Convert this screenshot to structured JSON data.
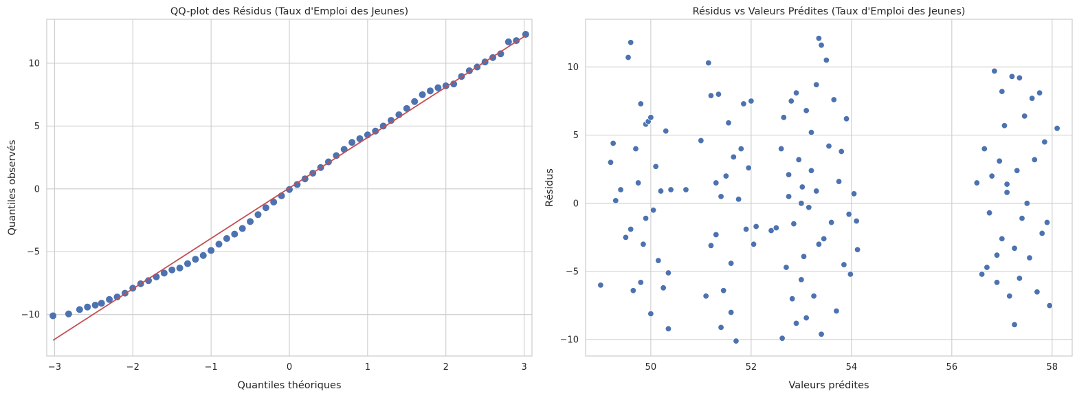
{
  "chart_data": [
    {
      "type": "scatter",
      "title": "QQ-plot des Résidus (Taux d'Emploi des Jeunes)",
      "xlabel": "Quantiles théoriques",
      "ylabel": "Quantiles observés",
      "xlim": [
        -3.1,
        3.1
      ],
      "ylim": [
        -13.3,
        13.5
      ],
      "xticks": [
        -3,
        -2,
        -1,
        0,
        1,
        2,
        3
      ],
      "yticks": [
        -10,
        -5,
        0,
        5,
        10
      ],
      "grid": true,
      "point_color": "#4c72b0",
      "line_color": "#c44e52",
      "reference_line": {
        "x": [
          -3.02,
          3.02
        ],
        "y": [
          -12.05,
          12.2
        ]
      },
      "series": [
        {
          "values": [
            [
              -3.02,
              -10.1
            ],
            [
              -2.82,
              -9.95
            ],
            [
              -2.68,
              -9.6
            ],
            [
              -2.58,
              -9.4
            ],
            [
              -2.48,
              -9.25
            ],
            [
              -2.4,
              -9.1
            ],
            [
              -2.3,
              -8.8
            ],
            [
              -2.2,
              -8.6
            ],
            [
              -2.1,
              -8.3
            ],
            [
              -2.0,
              -7.9
            ],
            [
              -1.9,
              -7.55
            ],
            [
              -1.8,
              -7.3
            ],
            [
              -1.7,
              -7.0
            ],
            [
              -1.6,
              -6.7
            ],
            [
              -1.5,
              -6.45
            ],
            [
              -1.4,
              -6.3
            ],
            [
              -1.3,
              -5.95
            ],
            [
              -1.2,
              -5.6
            ],
            [
              -1.1,
              -5.3
            ],
            [
              -1.0,
              -4.9
            ],
            [
              -0.9,
              -4.4
            ],
            [
              -0.8,
              -3.95
            ],
            [
              -0.7,
              -3.6
            ],
            [
              -0.6,
              -3.15
            ],
            [
              -0.5,
              -2.6
            ],
            [
              -0.4,
              -2.05
            ],
            [
              -0.3,
              -1.5
            ],
            [
              -0.2,
              -1.05
            ],
            [
              -0.1,
              -0.55
            ],
            [
              0.0,
              -0.05
            ],
            [
              0.1,
              0.35
            ],
            [
              0.2,
              0.8
            ],
            [
              0.3,
              1.25
            ],
            [
              0.4,
              1.7
            ],
            [
              0.5,
              2.15
            ],
            [
              0.6,
              2.65
            ],
            [
              0.7,
              3.15
            ],
            [
              0.8,
              3.7
            ],
            [
              0.9,
              4.0
            ],
            [
              1.0,
              4.3
            ],
            [
              1.1,
              4.6
            ],
            [
              1.2,
              5.0
            ],
            [
              1.3,
              5.45
            ],
            [
              1.4,
              5.9
            ],
            [
              1.5,
              6.4
            ],
            [
              1.6,
              6.95
            ],
            [
              1.7,
              7.5
            ],
            [
              1.8,
              7.8
            ],
            [
              1.9,
              8.05
            ],
            [
              2.0,
              8.2
            ],
            [
              2.1,
              8.35
            ],
            [
              2.2,
              8.95
            ],
            [
              2.3,
              9.4
            ],
            [
              2.4,
              9.7
            ],
            [
              2.5,
              10.1
            ],
            [
              2.6,
              10.45
            ],
            [
              2.7,
              10.75
            ],
            [
              2.8,
              11.7
            ],
            [
              2.9,
              11.8
            ],
            [
              3.02,
              12.3
            ]
          ]
        }
      ]
    },
    {
      "type": "scatter",
      "title": "Résidus vs Valeurs Prédites (Taux d'Emploi des Jeunes)",
      "xlabel": "Valeurs prédites",
      "ylabel": "Résidus",
      "xlim": [
        48.7,
        58.4
      ],
      "ylim": [
        -11.2,
        13.5
      ],
      "xticks": [
        50,
        52,
        54,
        56,
        58
      ],
      "yticks": [
        -10,
        -5,
        0,
        5,
        10
      ],
      "grid": true,
      "point_color": "#4c72b0",
      "series": [
        {
          "values": [
            [
              49.0,
              -6.0
            ],
            [
              49.2,
              3.0
            ],
            [
              49.25,
              4.4
            ],
            [
              49.3,
              0.2
            ],
            [
              49.4,
              1.0
            ],
            [
              49.5,
              -2.5
            ],
            [
              49.55,
              10.7
            ],
            [
              49.6,
              11.8
            ],
            [
              49.6,
              -1.9
            ],
            [
              49.7,
              4.0
            ],
            [
              49.75,
              1.5
            ],
            [
              49.8,
              7.3
            ],
            [
              49.8,
              -5.8
            ],
            [
              49.85,
              -3.0
            ],
            [
              49.9,
              5.8
            ],
            [
              49.95,
              6.0
            ],
            [
              50.0,
              6.3
            ],
            [
              50.0,
              -8.1
            ],
            [
              50.05,
              -0.5
            ],
            [
              50.1,
              2.7
            ],
            [
              50.15,
              -4.2
            ],
            [
              50.2,
              0.9
            ],
            [
              50.25,
              -6.2
            ],
            [
              50.3,
              5.3
            ],
            [
              50.35,
              -5.1
            ],
            [
              50.4,
              1.0
            ],
            [
              49.65,
              -6.4
            ],
            [
              49.9,
              -1.1
            ],
            [
              50.35,
              -9.2
            ],
            [
              50.7,
              1.0
            ],
            [
              51.0,
              4.6
            ],
            [
              51.1,
              -6.8
            ],
            [
              51.15,
              10.3
            ],
            [
              51.2,
              7.9
            ],
            [
              51.2,
              -3.1
            ],
            [
              51.3,
              1.5
            ],
            [
              51.35,
              8.0
            ],
            [
              51.4,
              -9.1
            ],
            [
              51.4,
              0.5
            ],
            [
              51.5,
              2.0
            ],
            [
              51.55,
              5.9
            ],
            [
              51.6,
              -4.4
            ],
            [
              51.65,
              3.4
            ],
            [
              51.7,
              -10.1
            ],
            [
              51.75,
              0.3
            ],
            [
              51.8,
              4.0
            ],
            [
              51.85,
              7.3
            ],
            [
              51.9,
              -1.9
            ],
            [
              51.95,
              2.6
            ],
            [
              52.0,
              7.5
            ],
            [
              52.05,
              -3.0
            ],
            [
              52.1,
              -1.7
            ],
            [
              51.3,
              -2.3
            ],
            [
              51.45,
              -6.4
            ],
            [
              51.6,
              -8.0
            ],
            [
              52.4,
              -2.0
            ],
            [
              52.5,
              -1.8
            ],
            [
              52.6,
              4.0
            ],
            [
              52.62,
              -9.9
            ],
            [
              52.65,
              6.3
            ],
            [
              52.7,
              -4.7
            ],
            [
              52.75,
              0.5
            ],
            [
              52.8,
              7.5
            ],
            [
              52.82,
              -7.0
            ],
            [
              52.85,
              -1.5
            ],
            [
              52.9,
              8.1
            ],
            [
              52.95,
              3.2
            ],
            [
              53.0,
              -5.6
            ],
            [
              53.02,
              1.2
            ],
            [
              53.05,
              -3.9
            ],
            [
              53.1,
              6.8
            ],
            [
              53.15,
              -0.3
            ],
            [
              53.2,
              2.4
            ],
            [
              53.25,
              -6.8
            ],
            [
              53.3,
              8.7
            ],
            [
              53.3,
              0.9
            ],
            [
              53.35,
              12.1
            ],
            [
              53.4,
              11.6
            ],
            [
              53.4,
              -9.6
            ],
            [
              53.45,
              -2.6
            ],
            [
              53.5,
              10.5
            ],
            [
              53.55,
              4.2
            ],
            [
              53.6,
              -1.4
            ],
            [
              53.65,
              7.6
            ],
            [
              53.7,
              -7.9
            ],
            [
              53.75,
              1.6
            ],
            [
              53.8,
              3.8
            ],
            [
              53.85,
              -4.5
            ],
            [
              53.9,
              6.2
            ],
            [
              53.95,
              -0.8
            ],
            [
              53.98,
              -5.2
            ],
            [
              54.05,
              0.7
            ],
            [
              54.1,
              -1.3
            ],
            [
              54.12,
              -3.4
            ],
            [
              52.9,
              -8.8
            ],
            [
              53.1,
              -8.4
            ],
            [
              53.2,
              5.2
            ],
            [
              53.35,
              -3.0
            ],
            [
              52.75,
              2.1
            ],
            [
              53.0,
              0.0
            ],
            [
              56.5,
              1.5
            ],
            [
              56.6,
              -5.2
            ],
            [
              56.65,
              4.0
            ],
            [
              56.7,
              -4.7
            ],
            [
              56.75,
              -0.7
            ],
            [
              56.8,
              2.0
            ],
            [
              56.85,
              9.7
            ],
            [
              56.9,
              -5.8
            ],
            [
              56.95,
              3.1
            ],
            [
              57.0,
              8.2
            ],
            [
              57.0,
              -2.6
            ],
            [
              57.05,
              5.7
            ],
            [
              57.1,
              0.8
            ],
            [
              57.15,
              -6.8
            ],
            [
              57.2,
              9.3
            ],
            [
              57.25,
              -8.9
            ],
            [
              57.3,
              2.4
            ],
            [
              57.35,
              9.2
            ],
            [
              57.35,
              -5.5
            ],
            [
              57.4,
              -1.1
            ],
            [
              57.45,
              6.4
            ],
            [
              57.5,
              0.0
            ],
            [
              57.55,
              -4.0
            ],
            [
              57.6,
              7.7
            ],
            [
              57.65,
              3.2
            ],
            [
              57.7,
              -6.5
            ],
            [
              57.75,
              8.1
            ],
            [
              57.8,
              -2.2
            ],
            [
              57.85,
              4.5
            ],
            [
              57.9,
              -1.4
            ],
            [
              57.95,
              -7.5
            ],
            [
              58.1,
              5.5
            ],
            [
              56.9,
              -3.8
            ],
            [
              57.1,
              1.4
            ],
            [
              57.25,
              -3.3
            ]
          ]
        }
      ]
    }
  ]
}
